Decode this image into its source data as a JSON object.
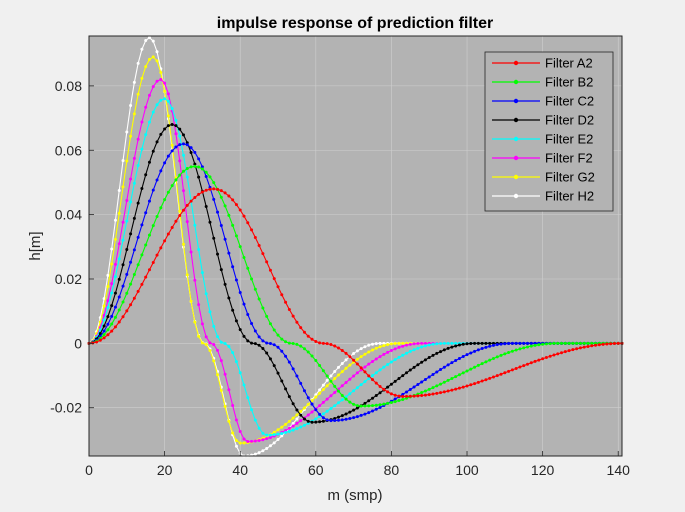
{
  "chart_data": {
    "type": "line",
    "title": "impulse response of prediction filter",
    "xlabel": "m (smp)",
    "ylabel": "h[m]",
    "xlim": [
      0,
      141
    ],
    "ylim": [
      -0.035,
      0.0955
    ],
    "x_ticks": [
      0,
      20,
      40,
      60,
      80,
      100,
      120,
      140
    ],
    "x_tick_labels": [
      "0",
      "20",
      "40",
      "60",
      "80",
      "100",
      "120",
      "140"
    ],
    "y_ticks": [
      -0.02,
      0,
      0.02,
      0.04,
      0.06,
      0.08
    ],
    "y_tick_labels": [
      "-0.02",
      "0",
      "0.02",
      "0.04",
      "0.06",
      "0.08"
    ],
    "grid": true,
    "background": "#b3b3b3",
    "legend_position": "top-right",
    "marker": "dot",
    "series": [
      {
        "name": "Filter A2",
        "color": "#ff0000",
        "length": 141,
        "peak_x": 33,
        "peak_y": 0.048,
        "trough_x": 83,
        "trough_y": -0.0165
      },
      {
        "name": "Filter B2",
        "color": "#00ff00",
        "length": 124,
        "peak_x": 28,
        "peak_y": 0.055,
        "trough_x": 72,
        "trough_y": -0.0195
      },
      {
        "name": "Filter C2",
        "color": "#0000ff",
        "length": 112,
        "peak_x": 25,
        "peak_y": 0.062,
        "trough_x": 64,
        "trough_y": -0.024
      },
      {
        "name": "Filter D2",
        "color": "#000000",
        "length": 102,
        "peak_x": 22,
        "peak_y": 0.068,
        "trough_x": 59,
        "trough_y": -0.0245
      },
      {
        "name": "Filter E2",
        "color": "#00ffff",
        "length": 94,
        "peak_x": 20,
        "peak_y": 0.076,
        "trough_x": 47,
        "trough_y": -0.0285
      },
      {
        "name": "Filter F2",
        "color": "#ff00ff",
        "length": 88,
        "peak_x": 19,
        "peak_y": 0.082,
        "trough_x": 42,
        "trough_y": -0.0305
      },
      {
        "name": "Filter G2",
        "color": "#ffff00",
        "length": 82,
        "peak_x": 17,
        "peak_y": 0.089,
        "trough_x": 40,
        "trough_y": -0.031
      },
      {
        "name": "Filter H2",
        "color": "#ffffff",
        "length": 77,
        "peak_x": 16,
        "peak_y": 0.095,
        "trough_x": 41,
        "trough_y": -0.035
      }
    ]
  }
}
